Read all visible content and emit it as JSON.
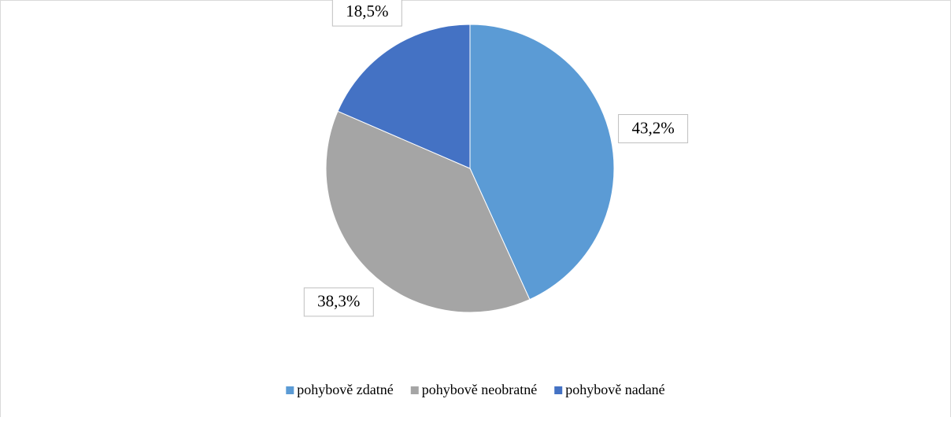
{
  "chart_data": {
    "type": "pie",
    "categories": [
      "pohybově zdatné",
      "pohybově neobratné",
      "pohybově nadané"
    ],
    "values": [
      43.2,
      38.3,
      18.5
    ],
    "value_labels": [
      "43,2%",
      "38,3%",
      "18,5%"
    ],
    "colors": [
      "#5b9bd5",
      "#a5a5a5",
      "#4472c4"
    ],
    "legend": "bottom"
  }
}
